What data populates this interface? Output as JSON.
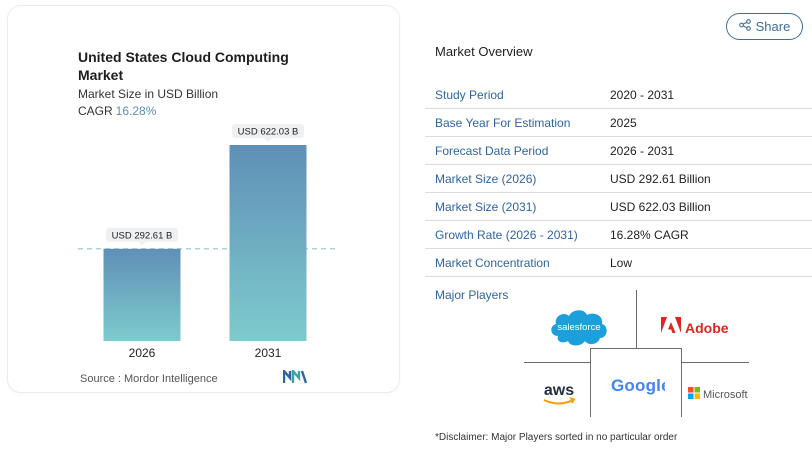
{
  "chart_data": {
    "type": "bar",
    "title": "United States Cloud Computing Market",
    "subtitle": "Market Size in USD Billion",
    "cagr_label": "CAGR",
    "cagr_value": "16.28%",
    "categories": [
      "2026",
      "2031"
    ],
    "values": [
      292.61,
      622.03
    ],
    "data_labels": [
      "USD 292.61 B",
      "USD 622.03 B"
    ],
    "xlabel": "",
    "ylabel": "",
    "ylim": [
      0,
      680
    ],
    "grid": false,
    "reference_line_value": 292.61,
    "bar_colors": [
      "#5f8fb7",
      "#7ecbcd"
    ]
  },
  "source": "Source : Mordor Intelligence",
  "share_label": "Share",
  "overview": {
    "title": "Market Overview",
    "rows": [
      {
        "key": "Study Period",
        "value": "2020 - 2031"
      },
      {
        "key": "Base Year For Estimation",
        "value": "2025"
      },
      {
        "key": "Forecast Data Period",
        "value": "2026 - 2031"
      },
      {
        "key": "Market Size (2026)",
        "value": "USD 292.61 Billion"
      },
      {
        "key": "Market Size (2031)",
        "value": "USD 622.03 Billion"
      },
      {
        "key": "Growth Rate (2026 - 2031)",
        "value": "16.28% CAGR"
      },
      {
        "key": "Market Concentration",
        "value": "Low"
      }
    ]
  },
  "major_players": {
    "label": "Major Players",
    "logos": {
      "salesforce": "salesforce",
      "adobe": "Adobe",
      "aws": "aws",
      "google": "Google",
      "microsoft": "Microsoft"
    }
  },
  "disclaimer": "*Disclaimer: Major Players sorted in no particular order",
  "colors": {
    "accent_blue": "#2f64a0",
    "bar_top": "#5f8fb7",
    "bar_bottom": "#7ecbcd",
    "cagr_text": "#5a8fb5"
  }
}
